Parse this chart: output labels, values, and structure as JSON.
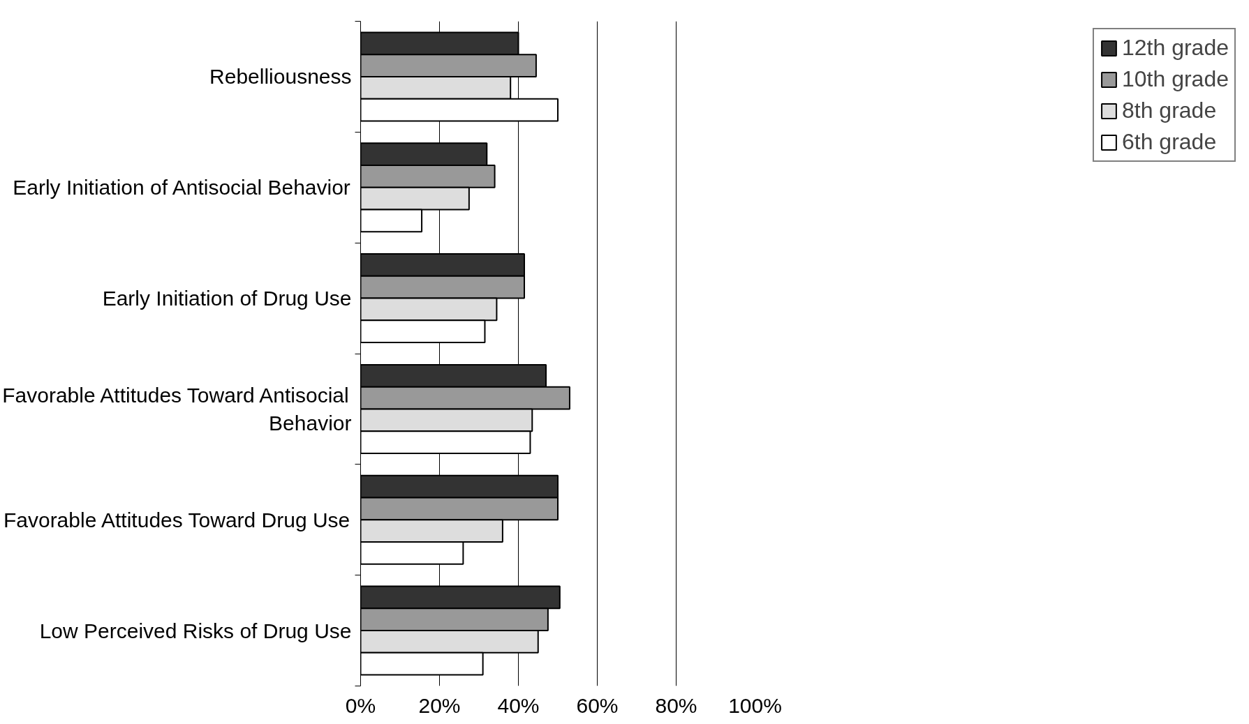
{
  "chart_data": {
    "type": "bar",
    "orientation": "horizontal",
    "categories": [
      "Rebelliousness",
      "Early Initiation of Antisocial Behavior",
      "Early Initiation of Drug Use",
      "Favorable Attitudes Toward Antisocial Behavior",
      "Favorable Attitudes Toward Drug Use",
      "Low Perceived Risks of Drug Use"
    ],
    "series": [
      {
        "name": "12th grade",
        "color": "#333333",
        "values": [
          40,
          32,
          41.5,
          47,
          50,
          50.5
        ]
      },
      {
        "name": "10th grade",
        "color": "#999999",
        "values": [
          44.5,
          34,
          41.5,
          53,
          50,
          47.5
        ]
      },
      {
        "name": "8th grade",
        "color": "#dddddd",
        "values": [
          38,
          27.5,
          34.5,
          43.5,
          36,
          45
        ]
      },
      {
        "name": "6th grade",
        "color": "#ffffff",
        "values": [
          50,
          15.5,
          31.5,
          43,
          26,
          31
        ]
      }
    ],
    "xlim": [
      0,
      100
    ],
    "xticks": [
      {
        "value": 0,
        "label": "0%"
      },
      {
        "value": 20,
        "label": "20%"
      },
      {
        "value": 40,
        "label": "40%"
      },
      {
        "value": 60,
        "label": "60%"
      },
      {
        "value": 80,
        "label": "80%"
      },
      {
        "value": 100,
        "label": "100%"
      }
    ],
    "grid": "x",
    "legend": "right"
  }
}
